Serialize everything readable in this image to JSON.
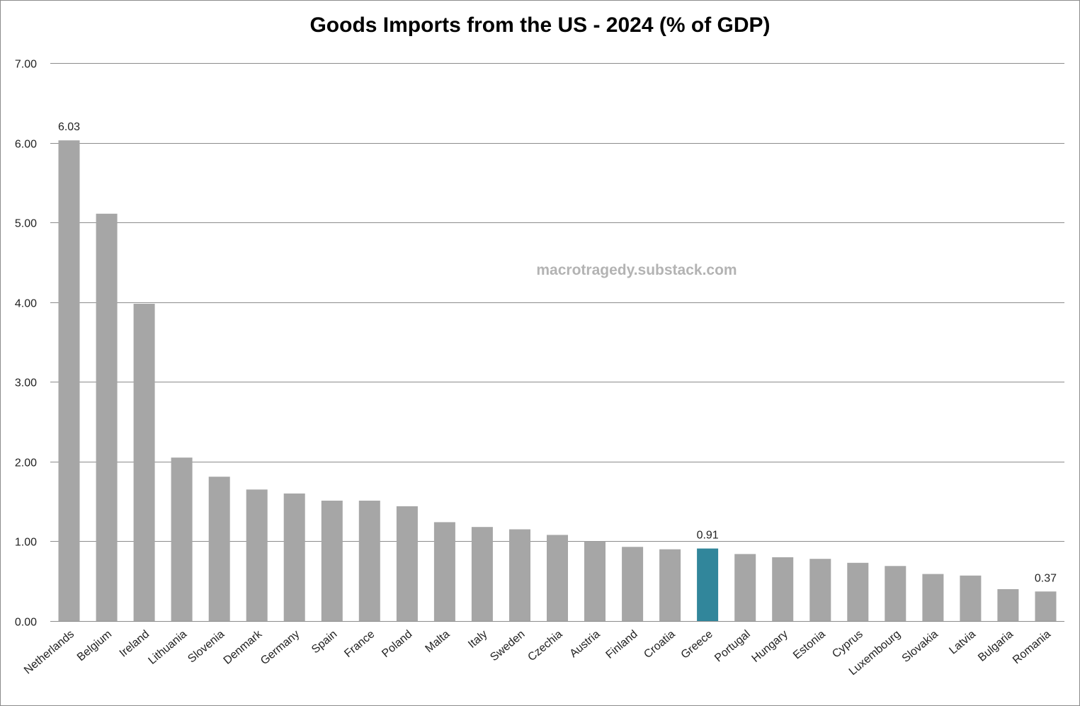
{
  "chart_data": {
    "type": "bar",
    "title": "Goods Imports from the US - 2024 (% of GDP)",
    "xlabel": "",
    "ylabel": "",
    "ylim": [
      0,
      7
    ],
    "yticks": [
      "0.00",
      "1.00",
      "2.00",
      "3.00",
      "4.00",
      "5.00",
      "6.00",
      "7.00"
    ],
    "grid": true,
    "categories": [
      "Netherlands",
      "Belgium",
      "Ireland",
      "Lithuania",
      "Slovenia",
      "Denmark",
      "Germany",
      "Spain",
      "France",
      "Poland",
      "Malta",
      "Italy",
      "Sweden",
      "Czechia",
      "Austria",
      "Finland",
      "Croatia",
      "Greece",
      "Portugal",
      "Hungary",
      "Estonia",
      "Cyprus",
      "Luxembourg",
      "Slovakia",
      "Latvia",
      "Bulgaria",
      "Romania"
    ],
    "values": [
      6.03,
      5.11,
      3.98,
      2.05,
      1.81,
      1.65,
      1.6,
      1.51,
      1.51,
      1.44,
      1.24,
      1.18,
      1.15,
      1.08,
      1.0,
      0.93,
      0.9,
      0.91,
      0.84,
      0.8,
      0.78,
      0.73,
      0.69,
      0.59,
      0.57,
      0.4,
      0.37
    ],
    "data_labels": [
      {
        "category": "Netherlands",
        "text": "6.03"
      },
      {
        "category": "Greece",
        "text": "0.91"
      },
      {
        "category": "Romania",
        "text": "0.37"
      }
    ],
    "highlight": "Greece",
    "watermark": "macrotragedy.substack.com"
  },
  "colors": {
    "bar": "#a6a6a6",
    "highlight": "#31869b",
    "grid": "#8c8c8c"
  }
}
